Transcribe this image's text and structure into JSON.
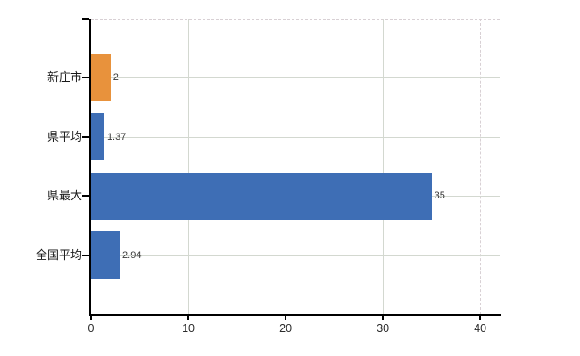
{
  "chart_data": {
    "type": "bar",
    "orientation": "horizontal",
    "title": "",
    "xlabel": "",
    "ylabel": "",
    "categories": [
      "新庄市",
      "県平均",
      "県最大",
      "全国平均"
    ],
    "values": [
      2,
      1.37,
      35,
      2.94
    ],
    "value_labels": [
      "2",
      "1.37",
      "35",
      "2.94"
    ],
    "bar_colors": [
      "#E8923C",
      "#3E6EB5",
      "#3E6EB5",
      "#3E6EB5"
    ],
    "x_ticks": [
      0,
      10,
      20,
      30,
      40
    ],
    "x_tick_labels": [
      "0",
      "10",
      "20",
      "30",
      "40"
    ],
    "xlim": [
      0,
      42
    ],
    "grid": true,
    "legend": false
  },
  "colors": {
    "background": "#ffffff",
    "axis": "#000000",
    "gridline": "#d3d8d0",
    "dashed_border": "#d8d0d4",
    "category_text": "#1a1a1a",
    "tick_text": "#2b2b2b",
    "value_text": "#3a3a3a"
  }
}
